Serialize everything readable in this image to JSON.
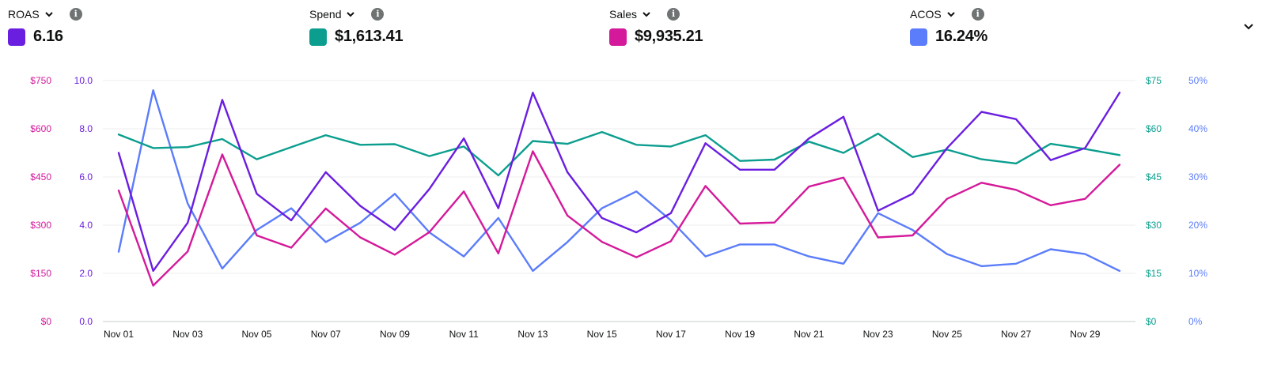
{
  "metrics": [
    {
      "label": "ROAS",
      "value": "6.16",
      "color": "#6a1ee0"
    },
    {
      "label": "Spend",
      "value": "$1,613.41",
      "color": "#0b9e8e"
    },
    {
      "label": "Sales",
      "value": "$9,935.21",
      "color": "#d4199a"
    },
    {
      "label": "ACOS",
      "value": "16.24%",
      "color": "#5b7cfb"
    }
  ],
  "icons": {
    "dropdown": "chevron-down-icon",
    "info": "info-icon",
    "collapse": "chevron-down-icon"
  },
  "chart_data": {
    "type": "line",
    "x": [
      "Nov 01",
      "Nov 02",
      "Nov 03",
      "Nov 04",
      "Nov 05",
      "Nov 06",
      "Nov 07",
      "Nov 08",
      "Nov 09",
      "Nov 10",
      "Nov 11",
      "Nov 12",
      "Nov 13",
      "Nov 14",
      "Nov 15",
      "Nov 16",
      "Nov 17",
      "Nov 18",
      "Nov 19",
      "Nov 20",
      "Nov 21",
      "Nov 22",
      "Nov 23",
      "Nov 24",
      "Nov 25",
      "Nov 26",
      "Nov 27",
      "Nov 28",
      "Nov 29",
      "Nov 30"
    ],
    "x_tick_labels": [
      "Nov 01",
      "Nov 03",
      "Nov 05",
      "Nov 07",
      "Nov 09",
      "Nov 11",
      "Nov 13",
      "Nov 15",
      "Nov 17",
      "Nov 19",
      "Nov 21",
      "Nov 23",
      "Nov 25",
      "Nov 27",
      "Nov 29"
    ],
    "axes": {
      "left_outer": {
        "ticks": [
          "$0",
          "$150",
          "$300",
          "$450",
          "$600",
          "$750"
        ],
        "range": [
          0,
          750
        ],
        "color": "#d4199a"
      },
      "left_inner": {
        "ticks": [
          "0.0",
          "2.0",
          "4.0",
          "6.0",
          "8.0",
          "10.0"
        ],
        "range": [
          0,
          10
        ],
        "color": "#6a1ee0"
      },
      "right_inner": {
        "ticks": [
          "$0",
          "$15",
          "$30",
          "$45",
          "$60",
          "$75"
        ],
        "range": [
          0,
          75
        ],
        "color": "#0b9e8e"
      },
      "right_outer": {
        "ticks": [
          "0%",
          "10%",
          "20%",
          "30%",
          "40%",
          "50%"
        ],
        "range": [
          0,
          50
        ],
        "color": "#5b7cfb"
      }
    },
    "grid": true,
    "series": [
      {
        "name": "ACOS",
        "axis": "right_outer",
        "color": "#5b7cfb",
        "values": [
          14.5,
          48.0,
          24.5,
          11.0,
          19.0,
          23.5,
          16.5,
          20.5,
          26.5,
          18.5,
          13.5,
          21.5,
          10.5,
          16.5,
          23.5,
          27.0,
          21.0,
          13.5,
          16.0,
          16.0,
          13.5,
          12.0,
          22.5,
          19.0,
          14.0,
          11.5,
          12.0,
          15.0,
          14.0,
          10.5
        ]
      },
      {
        "name": "Sales",
        "axis": "left_outer",
        "color": "#d4199a",
        "values": [
          408,
          112,
          218,
          520,
          268,
          230,
          352,
          262,
          208,
          278,
          405,
          212,
          530,
          330,
          248,
          200,
          250,
          422,
          305,
          308,
          420,
          448,
          262,
          268,
          382,
          432,
          410,
          362,
          382,
          488
        ]
      },
      {
        "name": "Spend",
        "axis": "right_inner",
        "color": "#0b9e8e",
        "values": [
          58.2,
          54.0,
          54.3,
          56.8,
          50.5,
          54.3,
          58.0,
          55.0,
          55.2,
          51.5,
          54.5,
          45.5,
          56.2,
          55.3,
          59.0,
          55.0,
          54.5,
          58.0,
          50.0,
          50.4,
          56.0,
          52.5,
          58.5,
          51.2,
          53.5,
          50.5,
          49.2,
          55.3,
          53.7,
          51.8
        ]
      },
      {
        "name": "ROAS",
        "axis": "left_inner",
        "color": "#6a1ee0",
        "values": [
          7.0,
          2.1,
          4.1,
          9.2,
          5.3,
          4.2,
          6.2,
          4.8,
          3.8,
          5.5,
          7.6,
          4.7,
          9.5,
          6.2,
          4.3,
          3.7,
          4.5,
          7.4,
          6.3,
          6.3,
          7.6,
          8.5,
          4.6,
          5.3,
          7.2,
          8.7,
          8.4,
          6.7,
          7.2,
          9.5
        ]
      }
    ]
  }
}
